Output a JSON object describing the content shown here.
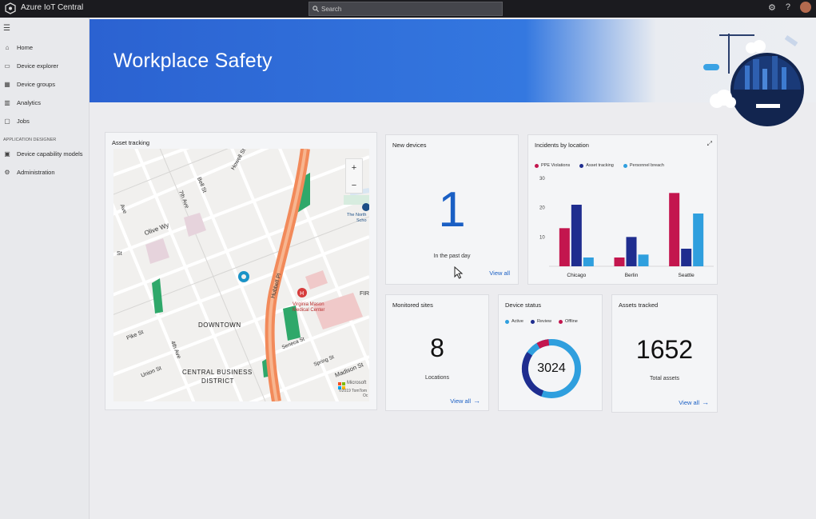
{
  "app": {
    "title": "Azure IoT Central",
    "search_placeholder": "Search"
  },
  "topbar": {
    "icons": [
      "gear-icon",
      "help-icon",
      "avatar"
    ]
  },
  "sidebar": {
    "items": [
      {
        "label": "Home",
        "icon": "home-icon"
      },
      {
        "label": "Device explorer",
        "icon": "device-icon"
      },
      {
        "label": "Device groups",
        "icon": "group-icon"
      },
      {
        "label": "Analytics",
        "icon": "chart-icon"
      },
      {
        "label": "Jobs",
        "icon": "jobs-icon"
      }
    ],
    "section_label": "APPLICATION DESIGNER",
    "designer_items": [
      {
        "label": "Device capability models",
        "icon": "model-icon"
      },
      {
        "label": "Administration",
        "icon": "admin-icon"
      }
    ]
  },
  "banner": {
    "title": "Workplace Safety"
  },
  "asset_tracking": {
    "title": "Asset tracking",
    "map_labels": {
      "olive": "Olive Wy",
      "downtown": "DOWNTOWN",
      "cbd1": "CENTRAL BUSINESS",
      "cbd2": "DISTRICT",
      "pike": "Pike St",
      "fourth": "4th Ave",
      "union": "Union St",
      "seventh": "7th Ave",
      "bell": "Bell St",
      "howell": "Howell St",
      "hubbell": "Hubbell Pl",
      "seneca": "Seneca St",
      "spring": "Spring St",
      "madison": "Madison St",
      "vmason1": "Virginia Mason",
      "vmason2": "Medical Center",
      "thenorth": "The North",
      "schol": "Scho",
      "fir": "FIR",
      "ms": "Microsoft",
      "copy": "©2019 TomTom",
      "ave": "Ave",
      "st": "St",
      "oc": "Oc"
    },
    "zoom_in": "+",
    "zoom_out": "−"
  },
  "new_devices": {
    "title": "New devices",
    "value": "1",
    "caption": "In the past day",
    "link": "View all"
  },
  "incidents": {
    "title": "Incidents by location",
    "colors": {
      "ppe": "#c3164e",
      "asset": "#1f2d8f",
      "personnel": "#2f9fde"
    }
  },
  "chart_data": {
    "type": "bar",
    "categories": [
      "Chicago",
      "Berlin",
      "Seattle"
    ],
    "series": [
      {
        "name": "PPE Violations",
        "values": [
          13,
          3,
          25
        ]
      },
      {
        "name": "Asset tracking",
        "values": [
          21,
          10,
          6
        ]
      },
      {
        "name": "Personnel breach",
        "values": [
          3,
          4,
          18
        ]
      }
    ],
    "yticks": [
      "10",
      "20",
      "30"
    ],
    "ylim": [
      0,
      30
    ],
    "legend": "top"
  },
  "monitored_sites": {
    "title": "Monitored sites",
    "value": "8",
    "caption": "Locations",
    "link": "View all"
  },
  "device_status": {
    "title": "Device status",
    "legend": [
      "Active",
      "Review",
      "Offline"
    ],
    "colors": {
      "active": "#2f9fde",
      "review": "#1f2d8f",
      "offline": "#c3164e"
    },
    "total": "3024"
  },
  "assets_tracked": {
    "title": "Assets tracked",
    "value": "1652",
    "caption": "Total assets",
    "link": "View all"
  }
}
